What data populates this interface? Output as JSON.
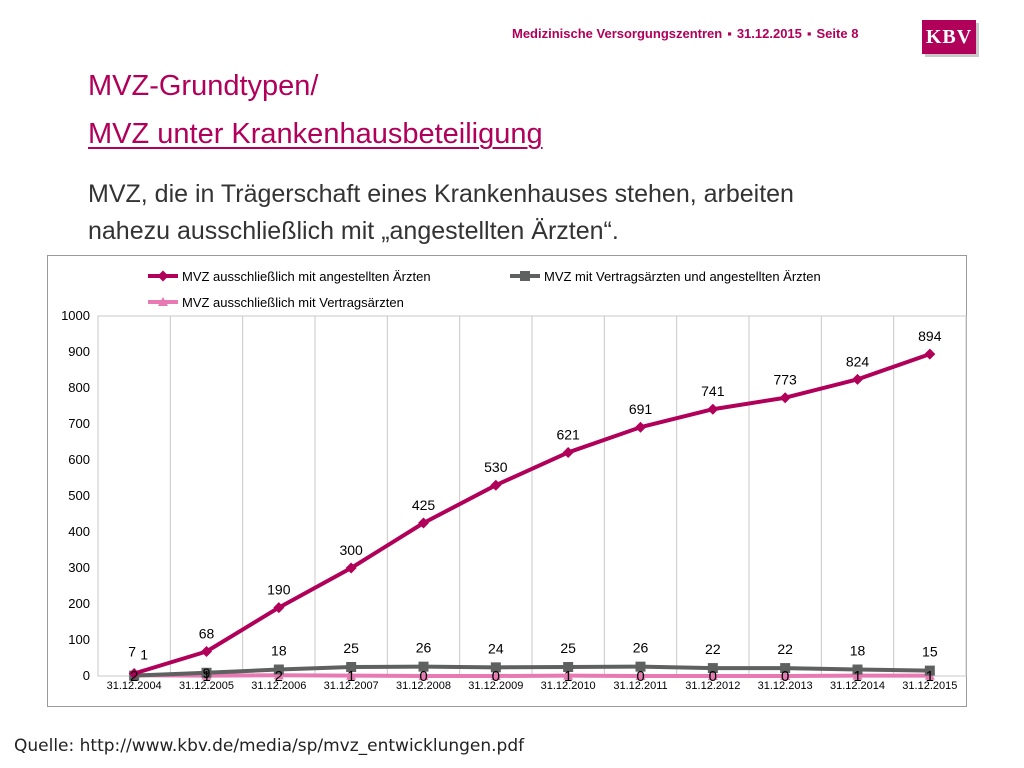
{
  "header": {
    "text": "Medizinische Versorgungszentren",
    "date": "31.12.2015",
    "page": "Seite 8",
    "logo": "KBV"
  },
  "title": {
    "line1": "MVZ-Grundtypen/",
    "line2": "MVZ unter Krankenhausbeteiligung"
  },
  "subtitle": {
    "line1": "MVZ, die in Trägerschaft eines Krankenhauses stehen, arbeiten",
    "line2": "nahezu ausschließlich mit „angestellten Ärzten“."
  },
  "source": "Quelle: http://www.kbv.de/media/sp/mvz_entwicklungen.pdf",
  "colors": {
    "brand": "#b0005a",
    "series_angestellte": "#b0005a",
    "series_vertrags_angestellte": "#5f6060",
    "series_vertragsaerzte": "#e779b3"
  },
  "chart_data": {
    "type": "line",
    "categories": [
      "31.12.2004",
      "31.12.2005",
      "31.12.2006",
      "31.12.2007",
      "31.12.2008",
      "31.12.2009",
      "31.12.2010",
      "31.12.2011",
      "31.12.2012",
      "31.12.2013",
      "31.12.2014",
      "31.12.2015"
    ],
    "ylim": [
      0,
      1000
    ],
    "yticks": [
      0,
      100,
      200,
      300,
      400,
      500,
      600,
      700,
      800,
      900,
      1000
    ],
    "grid": true,
    "legend_position": "top",
    "series": [
      {
        "name": "MVZ ausschließlich mit angestellten Ärzten",
        "color": "#b0005a",
        "marker": "diamond",
        "values": [
          7,
          68,
          190,
          300,
          425,
          530,
          621,
          691,
          741,
          773,
          824,
          894
        ]
      },
      {
        "name": "MVZ mit Vertragsärzten und angestellten Ärzten",
        "color": "#5f6060",
        "marker": "square",
        "values": [
          1,
          9,
          18,
          25,
          26,
          24,
          25,
          26,
          22,
          22,
          18,
          15
        ]
      },
      {
        "name": "MVZ ausschließlich mit Vertragsärzten",
        "color": "#e779b3",
        "marker": "triangle",
        "values": [
          2,
          1,
          2,
          1,
          0,
          0,
          1,
          0,
          0,
          0,
          1,
          1
        ]
      }
    ]
  }
}
